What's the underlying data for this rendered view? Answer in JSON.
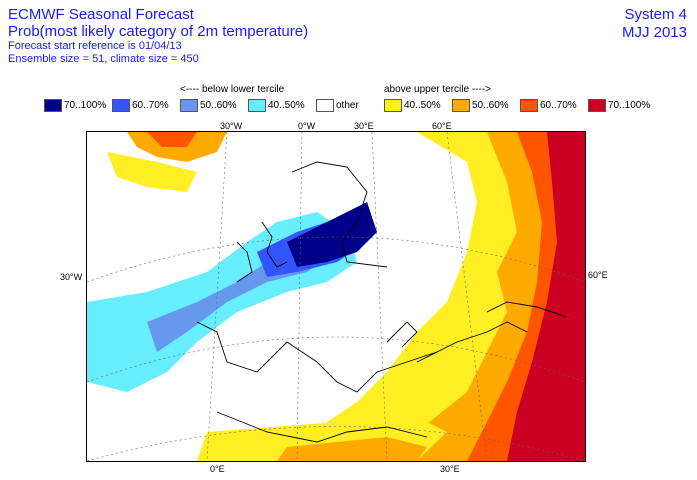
{
  "header": {
    "title": "ECMWF Seasonal Forecast",
    "subtitle": "Prob(most likely category of 2m temperature)",
    "line3": "Forecast start reference is 01/04/13",
    "line4": "Ensemble size = 51, climate size = 450"
  },
  "top_right": {
    "system": "System 4",
    "period": "MJJ 2013"
  },
  "terciles": {
    "lower": "<---- below lower tercile",
    "upper": "above upper tercile ---->"
  },
  "legend": [
    {
      "label": "70..100%",
      "color": "#00008b"
    },
    {
      "label": "60..70%",
      "color": "#3355ff"
    },
    {
      "label": "50..60%",
      "color": "#6699ee"
    },
    {
      "label": "40..50%",
      "color": "#66eeff"
    },
    {
      "label": "other",
      "color": "#ffffff"
    },
    {
      "label": "40..50%",
      "color": "#ffee22"
    },
    {
      "label": "50..60%",
      "color": "#ffaa00"
    },
    {
      "label": "60..70%",
      "color": "#ff5500"
    },
    {
      "label": "70..100%",
      "color": "#cc0022"
    }
  ],
  "ticks": {
    "top": [
      "30°W",
      "0°W",
      "30°E",
      "60°E"
    ],
    "left": "30°W",
    "right": "60°E",
    "bottom": [
      "0°E",
      "30°E"
    ]
  }
}
